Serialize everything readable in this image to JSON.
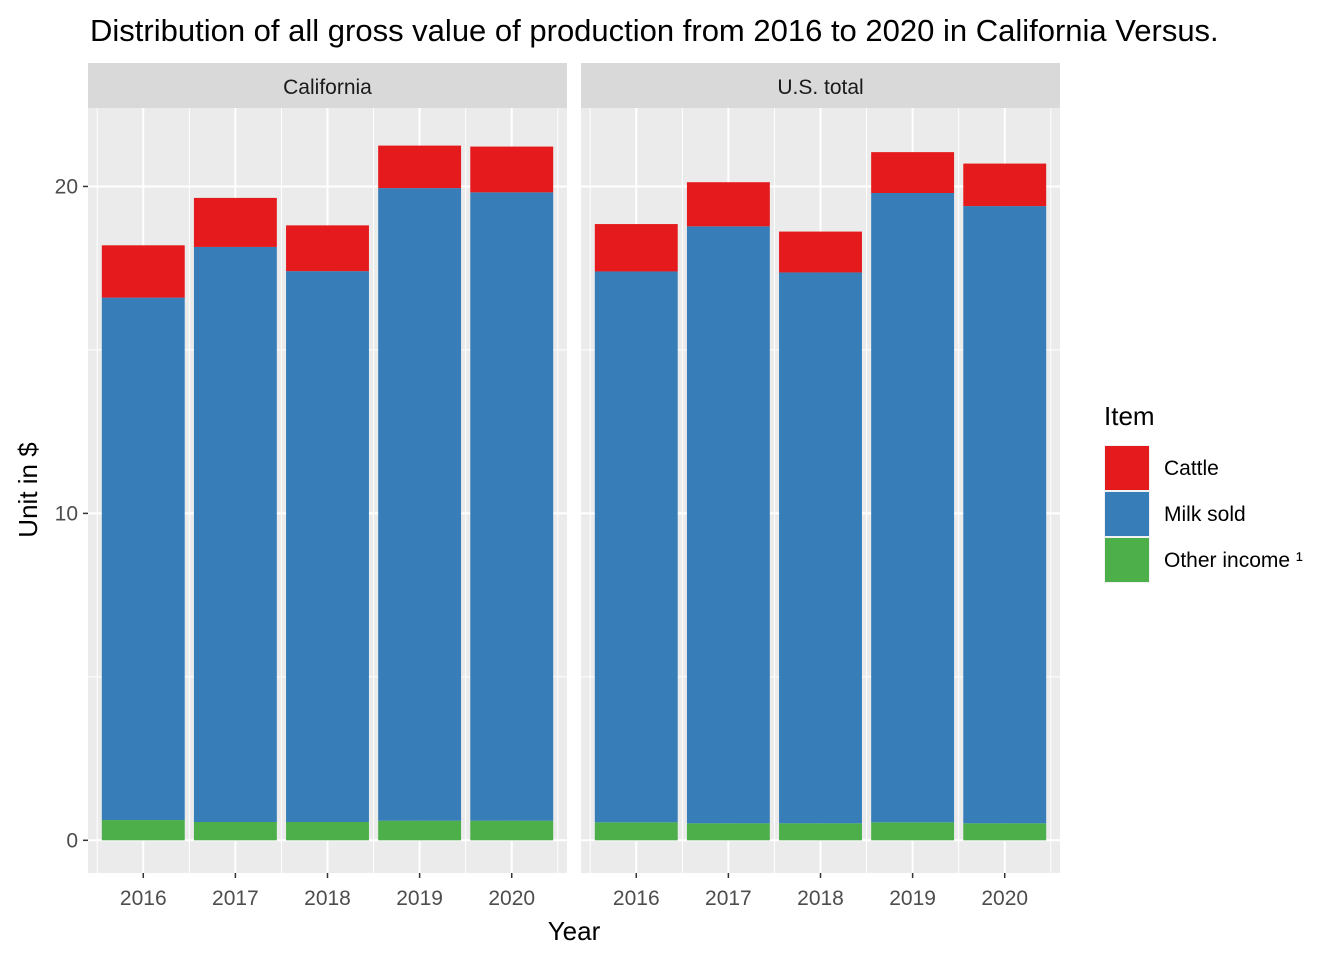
{
  "chart_data": {
    "type": "bar",
    "stacked": true,
    "title": "Distribution of all gross value of production from 2016 to 2020 in California Versus.",
    "xlabel": "Year",
    "ylabel": "Unit in $",
    "ylim": [
      -1,
      22.4
    ],
    "yticks": [
      "0",
      "10",
      "20"
    ],
    "grid": true,
    "legend": {
      "title": "Item",
      "position": "right"
    },
    "categories": [
      "2016",
      "2017",
      "2018",
      "2019",
      "2020"
    ],
    "series_meta": [
      {
        "name": "Cattle",
        "color": "#E41A1C"
      },
      {
        "name": "Milk sold",
        "color": "#377EB8"
      },
      {
        "name": "Other income ¹",
        "color": "#4DAF4A"
      }
    ],
    "panels": [
      {
        "label": "California",
        "series": [
          {
            "name": "Other income ¹",
            "values": [
              0.62,
              0.56,
              0.56,
              0.6,
              0.6
            ]
          },
          {
            "name": "Milk sold",
            "values": [
              15.98,
              17.59,
              16.85,
              19.35,
              19.22
            ]
          },
          {
            "name": "Cattle",
            "values": [
              1.6,
              1.5,
              1.4,
              1.3,
              1.4
            ]
          }
        ]
      },
      {
        "label": "U.S. total",
        "series": [
          {
            "name": "Other income ¹",
            "values": [
              0.55,
              0.52,
              0.52,
              0.55,
              0.52
            ]
          },
          {
            "name": "Milk sold",
            "values": [
              16.85,
              18.26,
              16.85,
              19.25,
              18.88
            ]
          },
          {
            "name": "Cattle",
            "values": [
              1.45,
              1.35,
              1.25,
              1.25,
              1.3
            ]
          }
        ]
      }
    ]
  }
}
